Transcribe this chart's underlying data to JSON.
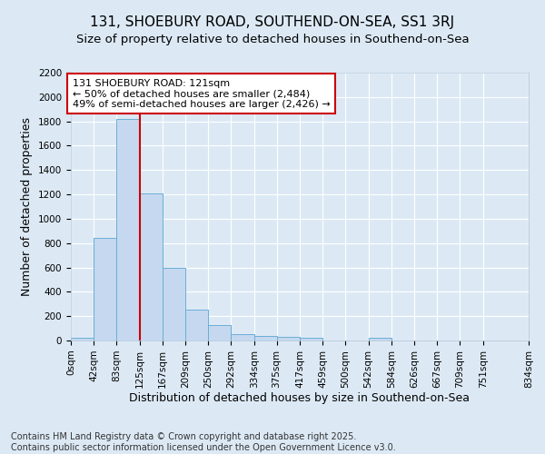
{
  "title": "131, SHOEBURY ROAD, SOUTHEND-ON-SEA, SS1 3RJ",
  "subtitle": "Size of property relative to detached houses in Southend-on-Sea",
  "xlabel": "Distribution of detached houses by size in Southend-on-Sea",
  "ylabel": "Number of detached properties",
  "footer_line1": "Contains HM Land Registry data © Crown copyright and database right 2025.",
  "footer_line2": "Contains public sector information licensed under the Open Government Licence v3.0.",
  "bar_values": [
    20,
    840,
    1820,
    1210,
    600,
    255,
    130,
    50,
    40,
    30,
    20,
    0,
    0,
    20,
    0,
    0,
    0,
    0,
    0
  ],
  "bin_edges": [
    0,
    42,
    83,
    125,
    167,
    209,
    250,
    292,
    334,
    375,
    417,
    459,
    500,
    542,
    584,
    626,
    667,
    709,
    751,
    834
  ],
  "bin_labels": [
    "0sqm",
    "42sqm",
    "83sqm",
    "125sqm",
    "167sqm",
    "209sqm",
    "250sqm",
    "292sqm",
    "334sqm",
    "375sqm",
    "417sqm",
    "459sqm",
    "500sqm",
    "542sqm",
    "584sqm",
    "626sqm",
    "667sqm",
    "709sqm",
    "751sqm",
    "834sqm"
  ],
  "ylim": [
    0,
    2200
  ],
  "yticks": [
    0,
    200,
    400,
    600,
    800,
    1000,
    1200,
    1400,
    1600,
    1800,
    2000,
    2200
  ],
  "bar_color": "#c5d8ef",
  "bar_edge_color": "#6baed6",
  "vline_x": 125,
  "vline_color": "#cc0000",
  "annotation_text_line1": "131 SHOEBURY ROAD: 121sqm",
  "annotation_text_line2": "← 50% of detached houses are smaller (2,484)",
  "annotation_text_line3": "49% of semi-detached houses are larger (2,426) →",
  "annotation_box_color": "#ffffff",
  "annotation_box_edge_color": "#cc0000",
  "background_color": "#dce9f5",
  "grid_color": "#ffffff",
  "title_fontsize": 11,
  "subtitle_fontsize": 9.5,
  "axis_label_fontsize": 9,
  "tick_fontsize": 7.5,
  "footer_fontsize": 7,
  "ann_fontsize": 8
}
